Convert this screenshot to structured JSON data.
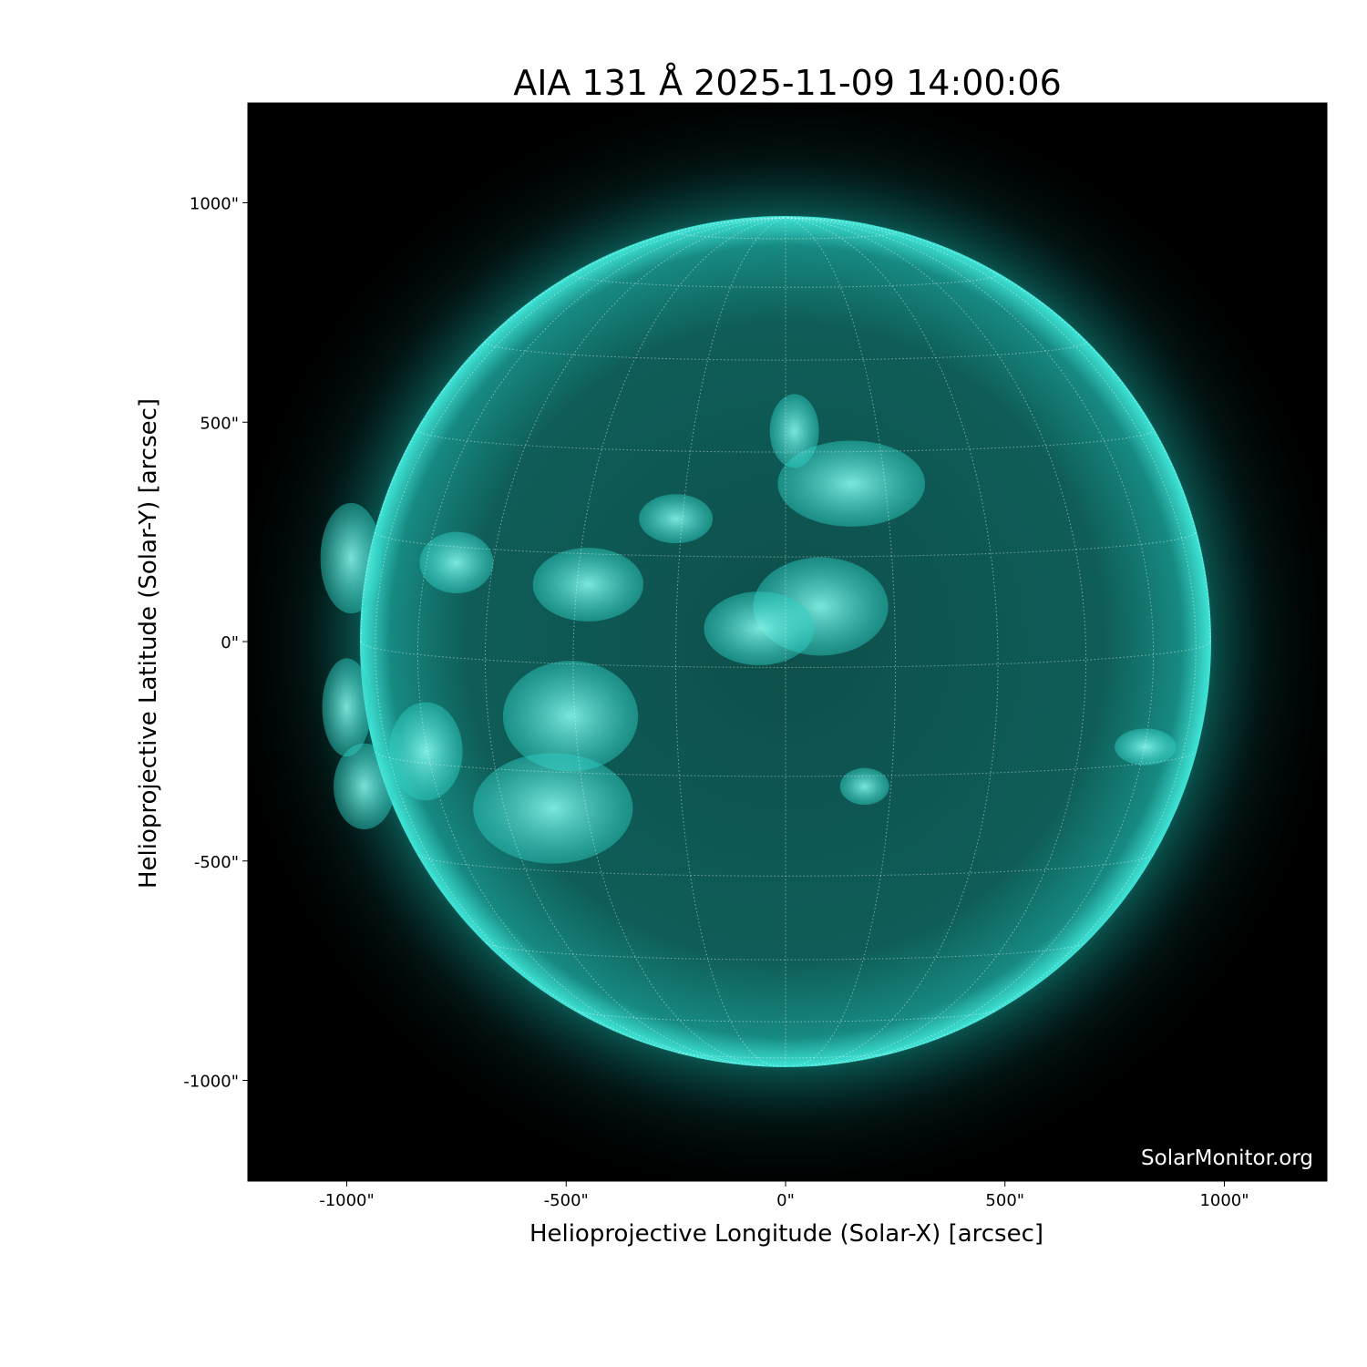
{
  "title": "AIA 131 Å 2025-11-09 14:00:06",
  "watermark": "SolarMonitor.org",
  "colors": {
    "sun": "#19d6c8",
    "background": "#000000",
    "grid": "#ffffff"
  },
  "chart_data": {
    "type": "image",
    "title": "AIA 131 Å 2025-11-09 14:00:06",
    "xlabel": "Helioprojective Longitude (Solar-X) [arcsec]",
    "ylabel": "Helioprojective Latitude (Solar-Y) [arcsec]",
    "xlim": [
      -1230,
      1230
    ],
    "ylim": [
      -1230,
      1230
    ],
    "xticks": [
      -1000,
      -500,
      0,
      500,
      1000
    ],
    "xtick_labels": [
      "-1000\"",
      "-500\"",
      "0\"",
      "500\"",
      "1000\""
    ],
    "yticks": [
      -1000,
      -500,
      0,
      500,
      1000
    ],
    "ytick_labels": [
      "-1000\"",
      "-500\"",
      "0\"",
      "500\"",
      "1000\""
    ],
    "solar_radius_arcsec": 968,
    "grid": "heliographic, 15° spacing, dotted"
  }
}
